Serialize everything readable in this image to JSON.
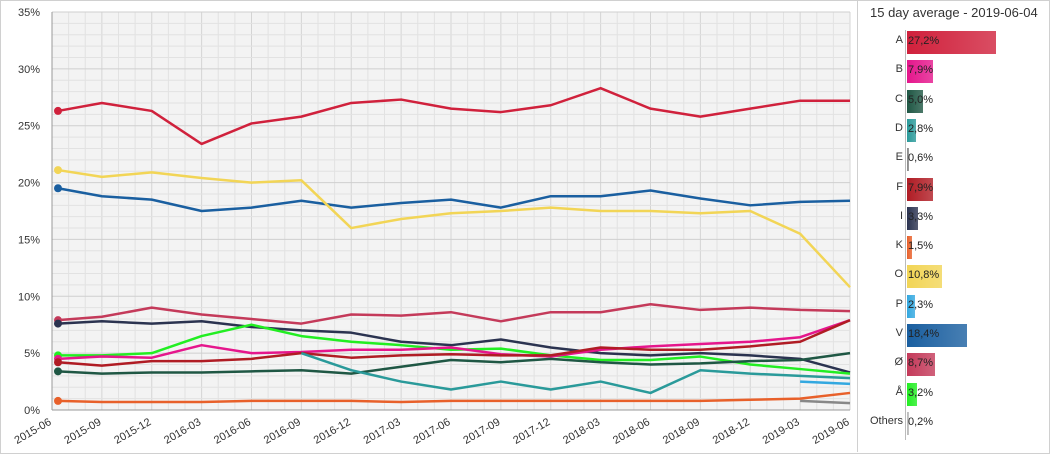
{
  "chart_data": {
    "type": "line",
    "title": "",
    "xlabel": "",
    "ylabel": "",
    "x": [
      "2015-06",
      "2015-09",
      "2015-12",
      "2016-03",
      "2016-06",
      "2016-09",
      "2016-12",
      "2017-03",
      "2017-06",
      "2017-09",
      "2017-12",
      "2018-03",
      "2018-06",
      "2018-09",
      "2018-12",
      "2019-03",
      "2019-06"
    ],
    "x_tick_labels": [
      "2015-06",
      "2015-09",
      "2015-12",
      "2016-03",
      "2016-06",
      "2016-09",
      "2016-12",
      "2017-03",
      "2017-06",
      "2017-09",
      "2017-12",
      "2018-03",
      "2018-06",
      "2018-09",
      "2018-12",
      "2019-03",
      "2019-06"
    ],
    "y_tick_labels": [
      "0%",
      "5%",
      "10%",
      "15%",
      "20%",
      "25%",
      "30%",
      "35%"
    ],
    "ylim": [
      0,
      35
    ],
    "grid": true,
    "series": [
      {
        "name": "A",
        "color": "#d0213c",
        "values": [
          26.3,
          27.0,
          26.3,
          23.4,
          25.2,
          25.8,
          27.0,
          27.3,
          26.5,
          26.2,
          26.8,
          28.3,
          26.5,
          25.8,
          26.5,
          27.2,
          27.2
        ]
      },
      {
        "name": "V",
        "color": "#1a5fa0",
        "values": [
          19.5,
          18.8,
          18.5,
          17.5,
          17.8,
          18.4,
          17.8,
          18.2,
          18.5,
          17.8,
          18.8,
          18.8,
          19.3,
          18.6,
          18.0,
          18.3,
          18.4
        ]
      },
      {
        "name": "O",
        "color": "#f2d556",
        "values": [
          21.1,
          20.5,
          20.9,
          20.4,
          20.0,
          20.2,
          16.0,
          16.8,
          17.3,
          17.5,
          17.8,
          17.5,
          17.5,
          17.3,
          17.5,
          15.5,
          10.8
        ]
      },
      {
        "name": "Ø",
        "color": "#c43a5a",
        "values": [
          7.9,
          8.2,
          9.0,
          8.4,
          8.0,
          7.6,
          8.4,
          8.3,
          8.6,
          7.8,
          8.6,
          8.6,
          9.3,
          8.8,
          9.0,
          8.8,
          8.7
        ]
      },
      {
        "name": "I",
        "color": "#2b3350",
        "values": [
          7.6,
          7.8,
          7.6,
          7.8,
          7.3,
          7.0,
          6.8,
          6.0,
          5.7,
          6.2,
          5.5,
          5.0,
          4.8,
          5.0,
          4.8,
          4.5,
          3.3
        ]
      },
      {
        "name": "Å",
        "color": "#22ee22",
        "values": [
          4.8,
          4.8,
          5.0,
          6.5,
          7.5,
          6.5,
          6.0,
          5.7,
          5.3,
          5.4,
          4.8,
          4.4,
          4.4,
          4.7,
          4.0,
          3.6,
          3.2
        ]
      },
      {
        "name": "B",
        "color": "#e5168c",
        "values": [
          4.5,
          4.7,
          4.6,
          5.7,
          5.0,
          5.1,
          5.3,
          5.3,
          5.5,
          4.9,
          4.7,
          5.3,
          5.6,
          5.8,
          6.0,
          6.4,
          7.9
        ]
      },
      {
        "name": "F",
        "color": "#b01c24",
        "values": [
          4.2,
          3.9,
          4.3,
          4.3,
          4.5,
          5.0,
          4.6,
          4.8,
          4.9,
          4.8,
          4.8,
          5.5,
          5.3,
          5.3,
          5.6,
          6.0,
          7.9
        ]
      },
      {
        "name": "C",
        "color": "#1f5744",
        "values": [
          3.4,
          3.2,
          3.3,
          3.3,
          3.4,
          3.5,
          3.2,
          3.8,
          4.4,
          4.2,
          4.5,
          4.2,
          4.0,
          4.1,
          4.3,
          4.4,
          5.0
        ]
      },
      {
        "name": "D",
        "color": "#2a9a9a",
        "values": [
          null,
          null,
          null,
          null,
          null,
          5.0,
          3.5,
          2.5,
          1.8,
          2.5,
          1.8,
          2.5,
          1.5,
          3.5,
          3.2,
          3.0,
          2.8
        ]
      },
      {
        "name": "P",
        "color": "#33a8e0",
        "values": [
          null,
          null,
          null,
          null,
          null,
          null,
          null,
          null,
          null,
          null,
          null,
          null,
          null,
          null,
          null,
          2.5,
          2.3
        ]
      },
      {
        "name": "E",
        "color": "#888888",
        "values": [
          null,
          null,
          null,
          null,
          null,
          null,
          null,
          null,
          null,
          null,
          null,
          null,
          null,
          null,
          null,
          0.8,
          0.6
        ]
      },
      {
        "name": "K",
        "color": "#e8602a",
        "values": [
          0.8,
          0.7,
          0.7,
          0.7,
          0.8,
          0.8,
          0.8,
          0.7,
          0.8,
          0.8,
          0.8,
          0.8,
          0.8,
          0.8,
          0.9,
          1.0,
          1.5
        ]
      }
    ]
  },
  "panel": {
    "title": "15 day average - 2019-06-04",
    "rows": [
      {
        "label": "A",
        "value": 27.2,
        "text": "27,2%",
        "color": "#d0213c"
      },
      {
        "label": "B",
        "value": 7.9,
        "text": "7,9%",
        "color": "#e5168c"
      },
      {
        "label": "C",
        "value": 5.0,
        "text": "5,0%",
        "color": "#1f5744"
      },
      {
        "label": "D",
        "value": 2.8,
        "text": "2,8%",
        "color": "#2a9a9a"
      },
      {
        "label": "E",
        "value": 0.6,
        "text": "0,6%",
        "color": "#888888"
      },
      {
        "label": "F",
        "value": 7.9,
        "text": "7,9%",
        "color": "#b01c24"
      },
      {
        "label": "I",
        "value": 3.3,
        "text": "3,3%",
        "color": "#2b3350"
      },
      {
        "label": "K",
        "value": 1.5,
        "text": "1,5%",
        "color": "#e8602a"
      },
      {
        "label": "O",
        "value": 10.8,
        "text": "10,8%",
        "color": "#f2d556"
      },
      {
        "label": "P",
        "value": 2.3,
        "text": "2,3%",
        "color": "#33a8e0"
      },
      {
        "label": "V",
        "value": 18.4,
        "text": "18,4%",
        "color": "#1a5fa0"
      },
      {
        "label": "Ø",
        "value": 8.7,
        "text": "8,7%",
        "color": "#c43a5a"
      },
      {
        "label": "Å",
        "value": 3.2,
        "text": "3,2%",
        "color": "#22ee22"
      },
      {
        "label": "Others",
        "value": 0.2,
        "text": "0,2%",
        "color": "#bbbbbb"
      }
    ]
  }
}
